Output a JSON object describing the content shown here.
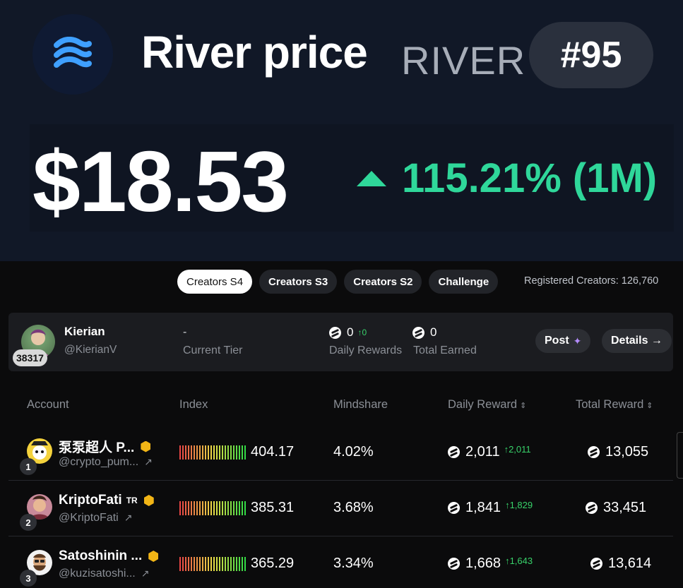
{
  "header": {
    "title": "River price",
    "symbol": "RIVER",
    "rank": "#95",
    "price": "$18.53",
    "change": "115.21% (1M)",
    "change_color": "#2fd79a",
    "logo_icon": "river-logo-icon"
  },
  "tabs": [
    {
      "label": "Creators S4",
      "active": true
    },
    {
      "label": "Creators S3",
      "active": false
    },
    {
      "label": "Creators S2",
      "active": false
    },
    {
      "label": "Challenge",
      "active": false
    }
  ],
  "registered_creators": "Registered Creators: 126,760",
  "user": {
    "rank_badge": "38317",
    "name": "Kierian",
    "handle": "@KierianV",
    "tier_value": "-",
    "tier_label": "Current Tier",
    "daily_rewards_value": "0",
    "daily_rewards_change": "0",
    "daily_rewards_label": "Daily Rewards",
    "total_earned_value": "0",
    "total_earned_label": "Total Earned",
    "post_label": "Post",
    "details_label": "Details →"
  },
  "table": {
    "headers": {
      "account": "Account",
      "index": "Index",
      "mindshare": "Mindshare",
      "daily_reward": "Daily Reward",
      "total_reward": "Total Reward"
    },
    "rows": [
      {
        "rank": "1",
        "name": "泵泵超人 P...",
        "tag": "",
        "verified": true,
        "handle": "@crypto_pum...",
        "index": "404.17",
        "mindshare": "4.02%",
        "daily": "2,011",
        "daily_change": "2,011",
        "total": "13,055"
      },
      {
        "rank": "2",
        "name": "KriptoFati",
        "tag": "TR",
        "verified": true,
        "handle": "@KriptoFati",
        "index": "385.31",
        "mindshare": "3.68%",
        "daily": "1,841",
        "daily_change": "1,829",
        "total": "33,451"
      },
      {
        "rank": "3",
        "name": "Satoshinin ...",
        "tag": "",
        "verified": true,
        "handle": "@kuzisatoshi...",
        "index": "365.29",
        "mindshare": "3.34%",
        "daily": "1,668",
        "daily_change": "1,643",
        "total": "13,614"
      }
    ]
  }
}
